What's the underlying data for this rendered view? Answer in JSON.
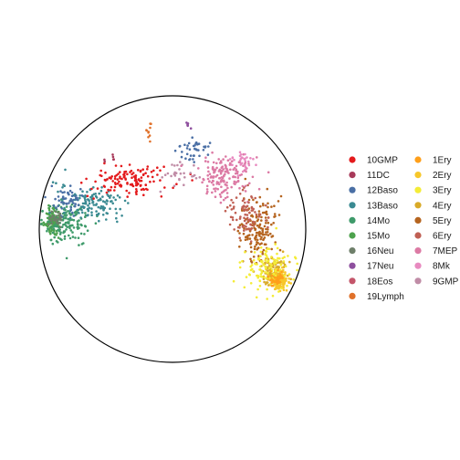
{
  "chart_data": {
    "type": "scatter",
    "title": "",
    "xlabel": "",
    "ylabel": "",
    "grid": false,
    "legend_position": "right",
    "boundary": "circle",
    "legend": [
      {
        "label": "10GMP",
        "color": "#e41a1c"
      },
      {
        "label": "11DC",
        "color": "#a83a5a"
      },
      {
        "label": "12Baso",
        "color": "#4a6fa5"
      },
      {
        "label": "13Baso",
        "color": "#3a8a92"
      },
      {
        "label": "14Mo",
        "color": "#3e9a6a"
      },
      {
        "label": "15Mo",
        "color": "#4da24d"
      },
      {
        "label": "16Neu",
        "color": "#6e7f6a"
      },
      {
        "label": "17Neu",
        "color": "#8e4f9e"
      },
      {
        "label": "18Eos",
        "color": "#c4566a"
      },
      {
        "label": "19Lymph",
        "color": "#e0712a"
      },
      {
        "label": "1Ery",
        "color": "#ff9f1a"
      },
      {
        "label": "2Ery",
        "color": "#f7c72a"
      },
      {
        "label": "3Ery",
        "color": "#f4ec37"
      },
      {
        "label": "4Ery",
        "color": "#d9aa28"
      },
      {
        "label": "5Ery",
        "color": "#b5641f"
      },
      {
        "label": "6Ery",
        "color": "#c06054"
      },
      {
        "label": "7MEP",
        "color": "#dc7aa4"
      },
      {
        "label": "8Mk",
        "color": "#e88ac0"
      },
      {
        "label": "9GMP",
        "color": "#c08ca6"
      }
    ],
    "clusters": [
      {
        "name": "15Mo",
        "x": -0.9,
        "y": 0.06,
        "sx": 0.03,
        "sy": 0.05,
        "n": 120
      },
      {
        "name": "14Mo",
        "x": -0.78,
        "y": 0.04,
        "sx": 0.09,
        "sy": 0.08,
        "n": 140
      },
      {
        "name": "13Baso",
        "x": -0.62,
        "y": 0.2,
        "sx": 0.12,
        "sy": 0.07,
        "n": 130
      },
      {
        "name": "12Baso",
        "x": -0.78,
        "y": 0.2,
        "sx": 0.06,
        "sy": 0.05,
        "n": 50
      },
      {
        "name": "16Neu",
        "x": -0.87,
        "y": 0.08,
        "sx": 0.03,
        "sy": 0.03,
        "n": 30
      },
      {
        "name": "10GMP",
        "x": -0.32,
        "y": 0.37,
        "sx": 0.14,
        "sy": 0.06,
        "n": 130
      },
      {
        "name": "11DC",
        "x": -0.46,
        "y": 0.52,
        "sx": 0.02,
        "sy": 0.02,
        "n": 6
      },
      {
        "name": "9GMP",
        "x": 0.06,
        "y": 0.4,
        "sx": 0.08,
        "sy": 0.05,
        "n": 30
      },
      {
        "name": "12Baso",
        "x": 0.15,
        "y": 0.61,
        "sx": 0.06,
        "sy": 0.04,
        "n": 40
      },
      {
        "name": "17Neu",
        "x": 0.12,
        "y": 0.78,
        "sx": 0.01,
        "sy": 0.01,
        "n": 6
      },
      {
        "name": "19Lymph",
        "x": -0.18,
        "y": 0.75,
        "sx": 0.01,
        "sy": 0.04,
        "n": 10
      },
      {
        "name": "7MEP",
        "x": 0.38,
        "y": 0.38,
        "sx": 0.1,
        "sy": 0.08,
        "n": 160
      },
      {
        "name": "8Mk",
        "x": 0.52,
        "y": 0.52,
        "sx": 0.05,
        "sy": 0.04,
        "n": 30
      },
      {
        "name": "5Ery",
        "x": 0.64,
        "y": 0.0,
        "sx": 0.07,
        "sy": 0.12,
        "n": 160
      },
      {
        "name": "6Ery",
        "x": 0.55,
        "y": 0.12,
        "sx": 0.06,
        "sy": 0.08,
        "n": 80
      },
      {
        "name": "4Ery",
        "x": 0.76,
        "y": -0.32,
        "sx": 0.05,
        "sy": 0.06,
        "n": 120
      },
      {
        "name": "2Ery",
        "x": 0.8,
        "y": -0.38,
        "sx": 0.03,
        "sy": 0.04,
        "n": 150
      },
      {
        "name": "3Ery",
        "x": 0.7,
        "y": -0.3,
        "sx": 0.09,
        "sy": 0.08,
        "n": 120
      },
      {
        "name": "1Ery",
        "x": 0.79,
        "y": -0.37,
        "sx": 0.025,
        "sy": 0.03,
        "n": 40
      }
    ]
  }
}
